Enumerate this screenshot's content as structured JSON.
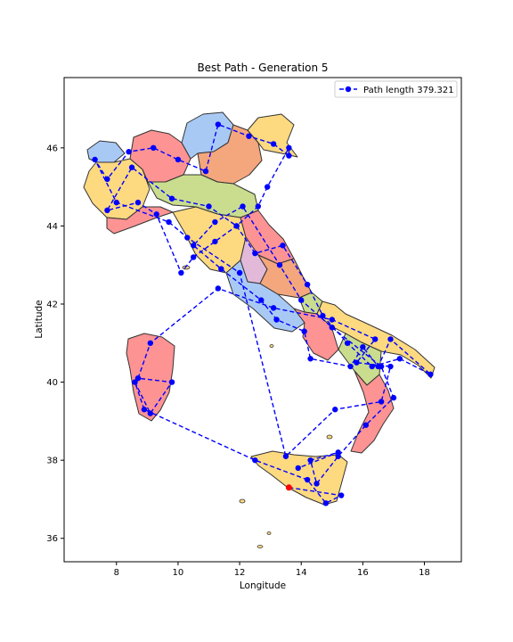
{
  "chart_data": {
    "type": "line",
    "title": "Best Path - Generation 5",
    "xlabel": "Longitude",
    "ylabel": "Latitude",
    "xlim": [
      6.3,
      19.2
    ],
    "ylim": [
      35.4,
      47.8
    ],
    "xticks": [
      8,
      10,
      12,
      14,
      16,
      18
    ],
    "yticks": [
      36,
      38,
      40,
      42,
      44,
      46
    ],
    "xtick_labels": [
      "8",
      "10",
      "12",
      "14",
      "16",
      "18"
    ],
    "ytick_labels": [
      "36",
      "38",
      "40",
      "42",
      "44",
      "46"
    ],
    "grid": false,
    "legend_position": "upper right",
    "series": [
      {
        "name": "Path length 379.321",
        "color": "#0000ff",
        "line_style": "dashed",
        "marker": "circle",
        "x": [
          13.6,
          15.3,
          14.8,
          14.2,
          12.5,
          8.9,
          8.6,
          9.1,
          9.8,
          8.7,
          9.1,
          11.3,
          13.1,
          15.0,
          16.4,
          15.8,
          16.9,
          16.6,
          15.1,
          13.5,
          12.0,
          10.3,
          9.7,
          8.0,
          7.3,
          7.7,
          8.4,
          9.2,
          10.0,
          10.9,
          11.3,
          12.3,
          13.1,
          13.6,
          13.6,
          12.9,
          12.6,
          11.9,
          11.2,
          10.5,
          10.1,
          9.3,
          8.7,
          7.7,
          8.5,
          9.8,
          11.0,
          11.9,
          12.5,
          13.4,
          14.2,
          14.7,
          15.5,
          16.3,
          17.2,
          18.2,
          16.9,
          16.5,
          16.0,
          15.6,
          14.3,
          14.1,
          13.2,
          12.7,
          11.4,
          10.5,
          11.2,
          12.1,
          13.3,
          14.0,
          15.0,
          16.6,
          17.0,
          16.1,
          15.2,
          14.5,
          14.3,
          15.2,
          13.9
        ],
        "y": [
          37.3,
          37.1,
          36.9,
          37.5,
          38.0,
          39.3,
          40.0,
          39.2,
          40.0,
          40.1,
          41.0,
          42.4,
          41.9,
          41.6,
          41.1,
          40.5,
          40.4,
          39.5,
          39.3,
          38.1,
          42.8,
          43.7,
          44.1,
          44.6,
          45.7,
          45.2,
          45.9,
          46.0,
          45.7,
          45.4,
          46.6,
          46.3,
          46.1,
          45.8,
          46.0,
          45.0,
          44.5,
          44.0,
          43.6,
          43.2,
          42.8,
          44.3,
          44.6,
          44.4,
          45.5,
          44.7,
          44.5,
          44.0,
          43.3,
          43.5,
          42.5,
          41.7,
          41.0,
          40.4,
          40.6,
          40.2,
          41.1,
          40.4,
          40.9,
          40.4,
          40.6,
          41.3,
          41.6,
          42.1,
          42.9,
          43.5,
          44.1,
          44.5,
          43.0,
          42.1,
          41.4,
          40.4,
          39.6,
          38.9,
          38.1,
          37.4,
          38.0,
          38.2,
          37.8
        ]
      }
    ],
    "start_point": {
      "x": 13.6,
      "y": 37.3,
      "color": "#ff0000"
    }
  },
  "colors": {
    "background": "#ffffff",
    "axes_edge": "#000000",
    "path": "#0000ff",
    "start_marker": "#ff0000",
    "region_fills": [
      "#fd9393",
      "#fdd980",
      "#a9c9f5",
      "#cadd8e",
      "#f4a67d",
      "#e2b9d8"
    ]
  },
  "map_background": "Italy regions map"
}
